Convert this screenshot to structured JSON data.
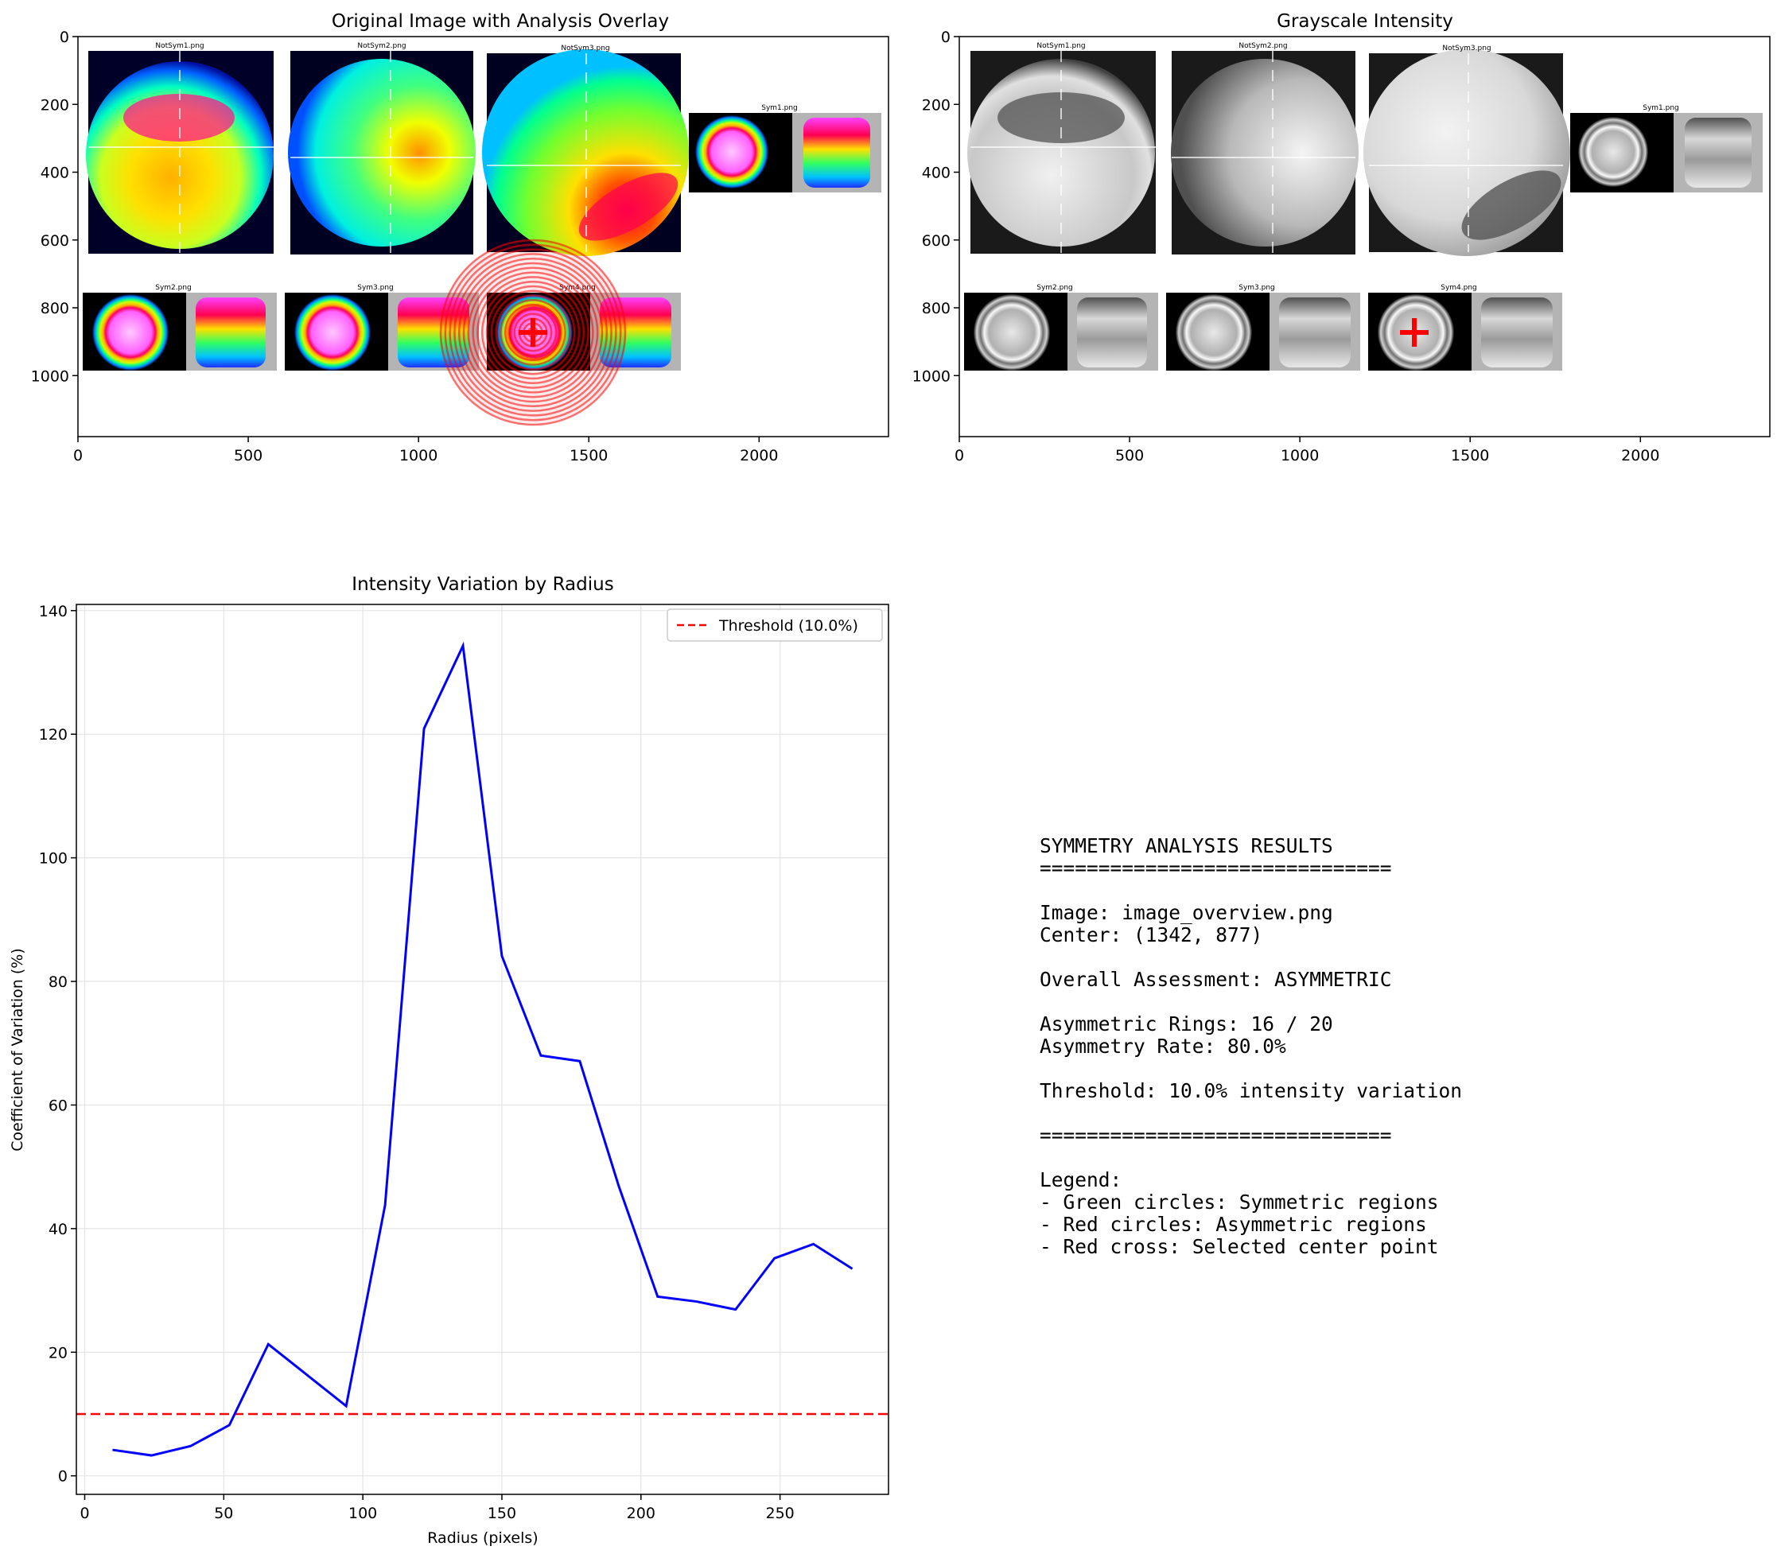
{
  "panels": {
    "overlay": {
      "title": "Original Image with Analysis Overlay",
      "xticks": [
        0,
        500,
        1000,
        1500,
        2000
      ],
      "yticks": [
        0,
        200,
        400,
        600,
        800,
        1000
      ],
      "xlim": [
        0,
        2380
      ],
      "ylim": [
        1180,
        0
      ],
      "thumb_labels": [
        "NotSym1.png",
        "NotSym2.png",
        "NotSym3.png",
        "Sym1.png",
        "Sym2.png",
        "Sym3.png",
        "Sym4.png"
      ],
      "center_marker": "red-cross",
      "ring_color": "#ff0000"
    },
    "grayscale": {
      "title": "Grayscale Intensity",
      "xticks": [
        0,
        500,
        1000,
        1500,
        2000
      ],
      "yticks": [
        0,
        200,
        400,
        600,
        800,
        1000
      ],
      "xlim": [
        0,
        2380
      ],
      "ylim": [
        1180,
        0
      ],
      "thumb_labels": [
        "NotSym1.png",
        "NotSym2.png",
        "NotSym3.png",
        "Sym1.png",
        "Sym2.png",
        "Sym3.png",
        "Sym4.png"
      ]
    },
    "results_text": [
      "SYMMETRY ANALYSIS RESULTS",
      "==============================",
      "",
      "Image: image_overview.png",
      "Center: (1342, 877)",
      "",
      "Overall Assessment: ASYMMETRIC",
      "",
      "Asymmetric Rings: 16 / 20",
      "Asymmetry Rate: 80.0%",
      "",
      "Threshold: 10.0% intensity variation",
      "",
      "==============================",
      "",
      "Legend:",
      "- Green circles: Symmetric regions",
      "- Red circles: Asymmetric regions",
      "- Red cross: Selected center point"
    ]
  },
  "chart_data": {
    "type": "line",
    "title": "Intensity Variation by Radius",
    "xlabel": "Radius (pixels)",
    "ylabel": "Coefficient of Variation (%)",
    "xlim": [
      -3,
      289
    ],
    "ylim": [
      -3,
      141
    ],
    "xticks": [
      0,
      50,
      100,
      150,
      200,
      250
    ],
    "yticks": [
      0,
      20,
      40,
      60,
      80,
      100,
      120,
      140
    ],
    "grid": true,
    "legend_position": "top-right",
    "series": [
      {
        "color": "#0000ff",
        "x": [
          10,
          24,
          38,
          52,
          66,
          80,
          94,
          108,
          122,
          136,
          150,
          164,
          178,
          192,
          206,
          220,
          234,
          248,
          262,
          276
        ],
        "y": [
          4.2,
          3.3,
          4.8,
          8.2,
          21.3,
          16.3,
          11.3,
          43.8,
          120.9,
          134.3,
          84.1,
          68.0,
          67.1,
          46.9,
          29.0,
          28.2,
          26.9,
          35.2,
          37.5,
          33.5
        ]
      }
    ],
    "reference_lines": [
      {
        "name": "Threshold (10.0%)",
        "y": 10.0,
        "color": "#ff0000",
        "style": "dashed"
      }
    ]
  }
}
